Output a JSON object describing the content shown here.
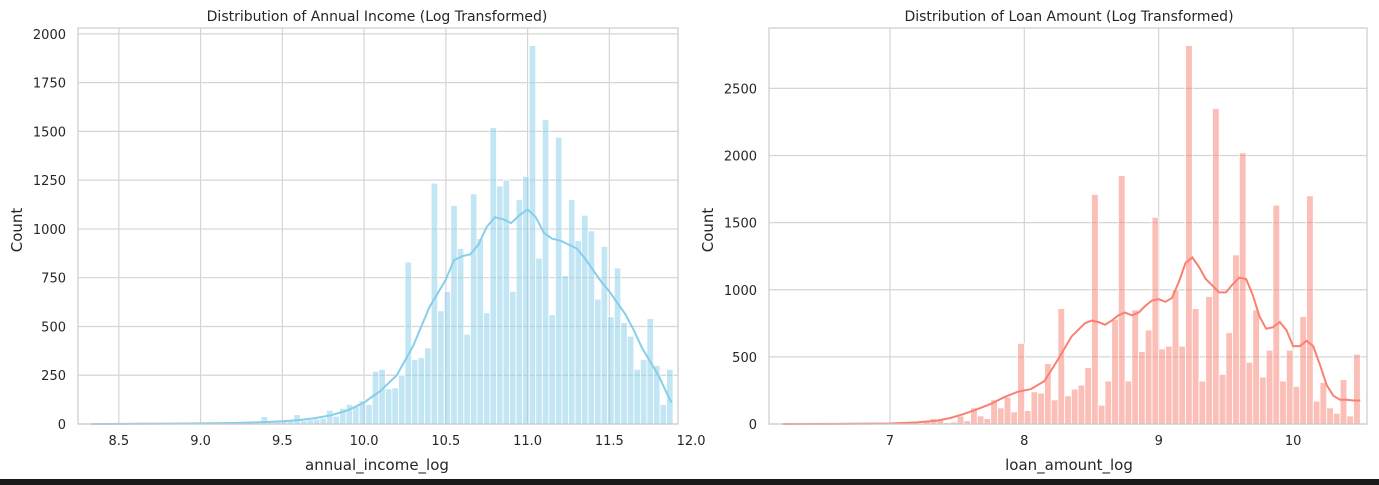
{
  "chart_data": [
    {
      "type": "histogram",
      "title": "Distribution of Annual Income (Log Transformed)",
      "xlabel": "annual_income_log",
      "ylabel": "Count",
      "xlim": [
        8.25,
        11.92
      ],
      "ylim": [
        0,
        2030
      ],
      "xticks": [
        8.5,
        9.0,
        9.5,
        10.0,
        10.5,
        11.0,
        11.5,
        12.0
      ],
      "xtick_labels": [
        "8.5",
        "9.0",
        "9.5",
        "10.0",
        "10.5",
        "11.0",
        "11.5",
        "12.0"
      ],
      "yticks": [
        0,
        250,
        500,
        750,
        1000,
        1250,
        1500,
        1750,
        2000
      ],
      "ytick_labels": [
        "0",
        "250",
        "500",
        "750",
        "1000",
        "1250",
        "1500",
        "1750",
        "2000"
      ],
      "grid": true,
      "bar_color": "#87ceeb",
      "kde_color": "#87ceeb",
      "bins": [
        [
          8.33,
          8.37,
          1
        ],
        [
          8.37,
          8.41,
          0
        ],
        [
          8.41,
          8.45,
          0
        ],
        [
          8.45,
          8.49,
          1
        ],
        [
          8.49,
          8.53,
          0
        ],
        [
          8.53,
          8.57,
          0
        ],
        [
          8.57,
          8.61,
          1
        ],
        [
          8.61,
          8.65,
          0
        ],
        [
          8.65,
          8.69,
          0
        ],
        [
          8.69,
          8.73,
          1
        ],
        [
          8.73,
          8.77,
          0
        ],
        [
          8.77,
          8.81,
          0
        ],
        [
          8.81,
          8.85,
          2
        ],
        [
          8.85,
          8.89,
          0
        ],
        [
          8.89,
          8.93,
          0
        ],
        [
          8.93,
          8.97,
          1
        ],
        [
          8.97,
          9.01,
          3
        ],
        [
          9.01,
          9.05,
          2
        ],
        [
          9.05,
          9.09,
          2
        ],
        [
          9.09,
          9.13,
          3
        ],
        [
          9.13,
          9.17,
          4
        ],
        [
          9.17,
          9.21,
          5
        ],
        [
          9.21,
          9.25,
          6
        ],
        [
          9.25,
          9.29,
          8
        ],
        [
          9.29,
          9.33,
          10
        ],
        [
          9.33,
          9.37,
          12
        ],
        [
          9.37,
          9.41,
          38
        ],
        [
          9.41,
          9.45,
          10
        ],
        [
          9.45,
          9.49,
          12
        ],
        [
          9.49,
          9.53,
          14
        ],
        [
          9.53,
          9.57,
          16
        ],
        [
          9.57,
          9.61,
          48
        ],
        [
          9.61,
          9.65,
          18
        ],
        [
          9.65,
          9.69,
          22
        ],
        [
          9.69,
          9.73,
          25
        ],
        [
          9.73,
          9.77,
          30
        ],
        [
          9.77,
          9.81,
          70
        ],
        [
          9.81,
          9.85,
          40
        ],
        [
          9.85,
          9.89,
          80
        ],
        [
          9.89,
          9.93,
          100
        ],
        [
          9.93,
          9.97,
          90
        ],
        [
          9.97,
          10.01,
          120
        ],
        [
          10.01,
          10.05,
          100
        ],
        [
          10.05,
          10.09,
          270
        ],
        [
          10.09,
          10.13,
          280
        ],
        [
          10.13,
          10.17,
          180
        ],
        [
          10.17,
          10.21,
          185
        ],
        [
          10.21,
          10.25,
          250
        ],
        [
          10.25,
          10.29,
          830
        ],
        [
          10.29,
          10.33,
          330
        ],
        [
          10.33,
          10.37,
          340
        ],
        [
          10.37,
          10.41,
          390
        ],
        [
          10.41,
          10.45,
          1235
        ],
        [
          10.45,
          10.49,
          580
        ],
        [
          10.49,
          10.53,
          680
        ],
        [
          10.53,
          10.57,
          1120
        ],
        [
          10.57,
          10.61,
          900
        ],
        [
          10.61,
          10.65,
          460
        ],
        [
          10.65,
          10.69,
          1180
        ],
        [
          10.69,
          10.73,
          950
        ],
        [
          10.73,
          10.77,
          570
        ],
        [
          10.77,
          10.81,
          1520
        ],
        [
          10.81,
          10.85,
          1220
        ],
        [
          10.85,
          10.89,
          1250
        ],
        [
          10.89,
          10.93,
          680
        ],
        [
          10.93,
          10.97,
          1150
        ],
        [
          10.97,
          11.01,
          1270
        ],
        [
          11.01,
          11.05,
          1940
        ],
        [
          11.05,
          11.09,
          850
        ],
        [
          11.09,
          11.13,
          1560
        ],
        [
          11.13,
          11.17,
          560
        ],
        [
          11.17,
          11.21,
          1470
        ],
        [
          11.21,
          11.25,
          760
        ],
        [
          11.25,
          11.29,
          1150
        ],
        [
          11.29,
          11.33,
          940
        ],
        [
          11.33,
          11.37,
          1070
        ],
        [
          11.37,
          11.41,
          990
        ],
        [
          11.41,
          11.45,
          640
        ],
        [
          11.45,
          11.49,
          910
        ],
        [
          11.49,
          11.53,
          550
        ],
        [
          11.53,
          11.57,
          800
        ],
        [
          11.57,
          11.61,
          520
        ],
        [
          11.61,
          11.65,
          450
        ],
        [
          11.65,
          11.69,
          280
        ],
        [
          11.69,
          11.73,
          330
        ],
        [
          11.73,
          11.77,
          540
        ],
        [
          11.77,
          11.81,
          300
        ],
        [
          11.81,
          11.85,
          100
        ],
        [
          11.85,
          11.89,
          280
        ]
      ],
      "kde": [
        [
          8.33,
          0
        ],
        [
          8.6,
          1
        ],
        [
          8.8,
          2
        ],
        [
          9.0,
          3
        ],
        [
          9.2,
          5
        ],
        [
          9.4,
          10
        ],
        [
          9.5,
          14
        ],
        [
          9.6,
          20
        ],
        [
          9.7,
          30
        ],
        [
          9.8,
          45
        ],
        [
          9.9,
          70
        ],
        [
          10.0,
          110
        ],
        [
          10.1,
          170
        ],
        [
          10.2,
          250
        ],
        [
          10.3,
          400
        ],
        [
          10.35,
          500
        ],
        [
          10.4,
          600
        ],
        [
          10.45,
          670
        ],
        [
          10.5,
          740
        ],
        [
          10.55,
          840
        ],
        [
          10.6,
          860
        ],
        [
          10.65,
          870
        ],
        [
          10.7,
          920
        ],
        [
          10.75,
          1010
        ],
        [
          10.8,
          1060
        ],
        [
          10.85,
          1050
        ],
        [
          10.9,
          1030
        ],
        [
          10.95,
          1070
        ],
        [
          11.0,
          1100
        ],
        [
          11.05,
          1060
        ],
        [
          11.1,
          980
        ],
        [
          11.15,
          950
        ],
        [
          11.2,
          940
        ],
        [
          11.25,
          920
        ],
        [
          11.3,
          900
        ],
        [
          11.35,
          850
        ],
        [
          11.4,
          790
        ],
        [
          11.45,
          730
        ],
        [
          11.5,
          680
        ],
        [
          11.55,
          620
        ],
        [
          11.6,
          560
        ],
        [
          11.65,
          480
        ],
        [
          11.7,
          390
        ],
        [
          11.75,
          320
        ],
        [
          11.8,
          250
        ],
        [
          11.85,
          160
        ],
        [
          11.88,
          110
        ]
      ]
    },
    {
      "type": "histogram",
      "title": "Distribution of Loan Amount (Log Transformed)",
      "xlabel": "loan_amount_log",
      "ylabel": "Count",
      "xlim": [
        6.1,
        10.55
      ],
      "ylim": [
        0,
        2950
      ],
      "xticks": [
        7,
        8,
        9,
        10
      ],
      "xtick_labels": [
        "7",
        "8",
        "9",
        "10"
      ],
      "yticks": [
        0,
        500,
        1000,
        1500,
        2000,
        2500
      ],
      "ytick_labels": [
        "0",
        "500",
        "1000",
        "1500",
        "2000",
        "2500"
      ],
      "grid": true,
      "bar_color": "#fa8072",
      "kde_color": "#fa8072",
      "bins": [
        [
          6.25,
          6.3,
          2
        ],
        [
          6.3,
          6.35,
          0
        ],
        [
          6.35,
          6.4,
          0
        ],
        [
          6.4,
          6.45,
          0
        ],
        [
          6.45,
          6.5,
          0
        ],
        [
          6.5,
          6.55,
          1
        ],
        [
          6.55,
          6.6,
          0
        ],
        [
          6.6,
          6.65,
          0
        ],
        [
          6.65,
          6.7,
          0
        ],
        [
          6.7,
          6.75,
          1
        ],
        [
          6.75,
          6.8,
          0
        ],
        [
          6.8,
          6.85,
          0
        ],
        [
          6.85,
          6.9,
          2
        ],
        [
          6.9,
          6.95,
          0
        ],
        [
          6.95,
          7.0,
          1
        ],
        [
          7.0,
          7.05,
          3
        ],
        [
          7.05,
          7.1,
          1
        ],
        [
          7.1,
          7.15,
          2
        ],
        [
          7.15,
          7.2,
          6
        ],
        [
          7.2,
          7.25,
          4
        ],
        [
          7.25,
          7.3,
          20
        ],
        [
          7.3,
          7.35,
          40
        ],
        [
          7.35,
          7.4,
          30
        ],
        [
          7.4,
          7.45,
          10
        ],
        [
          7.45,
          7.5,
          15
        ],
        [
          7.5,
          7.55,
          60
        ],
        [
          7.55,
          7.6,
          25
        ],
        [
          7.6,
          7.65,
          120
        ],
        [
          7.65,
          7.7,
          60
        ],
        [
          7.7,
          7.75,
          40
        ],
        [
          7.75,
          7.8,
          180
        ],
        [
          7.8,
          7.85,
          120
        ],
        [
          7.85,
          7.9,
          200
        ],
        [
          7.9,
          7.95,
          90
        ],
        [
          7.95,
          8.0,
          600
        ],
        [
          8.0,
          8.05,
          100
        ],
        [
          8.05,
          8.1,
          240
        ],
        [
          8.1,
          8.15,
          230
        ],
        [
          8.15,
          8.2,
          450
        ],
        [
          8.2,
          8.25,
          180
        ],
        [
          8.25,
          8.3,
          860
        ],
        [
          8.3,
          8.35,
          210
        ],
        [
          8.35,
          8.4,
          260
        ],
        [
          8.4,
          8.45,
          290
        ],
        [
          8.45,
          8.5,
          420
        ],
        [
          8.5,
          8.55,
          1710
        ],
        [
          8.55,
          8.6,
          140
        ],
        [
          8.6,
          8.65,
          320
        ],
        [
          8.65,
          8.7,
          780
        ],
        [
          8.7,
          8.75,
          1850
        ],
        [
          8.75,
          8.8,
          320
        ],
        [
          8.8,
          8.85,
          850
        ],
        [
          8.85,
          8.9,
          540
        ],
        [
          8.9,
          8.95,
          700
        ],
        [
          8.95,
          9.0,
          1540
        ],
        [
          9.0,
          9.05,
          560
        ],
        [
          9.05,
          9.1,
          580
        ],
        [
          9.1,
          9.15,
          1000
        ],
        [
          9.15,
          9.2,
          580
        ],
        [
          9.2,
          9.25,
          2820
        ],
        [
          9.25,
          9.3,
          860
        ],
        [
          9.3,
          9.35,
          320
        ],
        [
          9.35,
          9.4,
          950
        ],
        [
          9.4,
          9.45,
          2350
        ],
        [
          9.45,
          9.5,
          370
        ],
        [
          9.5,
          9.55,
          680
        ],
        [
          9.55,
          9.6,
          1260
        ],
        [
          9.6,
          9.65,
          2020
        ],
        [
          9.65,
          9.7,
          460
        ],
        [
          9.7,
          9.75,
          850
        ],
        [
          9.75,
          9.8,
          350
        ],
        [
          9.8,
          9.85,
          550
        ],
        [
          9.85,
          9.9,
          1630
        ],
        [
          9.9,
          9.95,
          320
        ],
        [
          9.95,
          10.0,
          550
        ],
        [
          10.0,
          10.05,
          280
        ],
        [
          10.05,
          10.1,
          800
        ],
        [
          10.1,
          10.15,
          1700
        ],
        [
          10.15,
          10.2,
          170
        ],
        [
          10.2,
          10.25,
          310
        ],
        [
          10.25,
          10.3,
          120
        ],
        [
          10.3,
          10.35,
          80
        ],
        [
          10.35,
          10.4,
          330
        ],
        [
          10.4,
          10.45,
          60
        ],
        [
          10.45,
          10.5,
          520
        ]
      ],
      "kde": [
        [
          6.2,
          0
        ],
        [
          6.6,
          1
        ],
        [
          7.0,
          4
        ],
        [
          7.2,
          12
        ],
        [
          7.35,
          25
        ],
        [
          7.45,
          45
        ],
        [
          7.55,
          75
        ],
        [
          7.65,
          110
        ],
        [
          7.75,
          150
        ],
        [
          7.85,
          200
        ],
        [
          7.95,
          240
        ],
        [
          8.05,
          260
        ],
        [
          8.15,
          320
        ],
        [
          8.25,
          480
        ],
        [
          8.35,
          650
        ],
        [
          8.45,
          750
        ],
        [
          8.5,
          770
        ],
        [
          8.55,
          760
        ],
        [
          8.6,
          740
        ],
        [
          8.65,
          770
        ],
        [
          8.7,
          810
        ],
        [
          8.75,
          830
        ],
        [
          8.8,
          810
        ],
        [
          8.85,
          830
        ],
        [
          8.9,
          880
        ],
        [
          8.95,
          920
        ],
        [
          9.0,
          930
        ],
        [
          9.05,
          910
        ],
        [
          9.1,
          940
        ],
        [
          9.15,
          1060
        ],
        [
          9.2,
          1200
        ],
        [
          9.25,
          1240
        ],
        [
          9.3,
          1170
        ],
        [
          9.35,
          1080
        ],
        [
          9.4,
          1030
        ],
        [
          9.45,
          980
        ],
        [
          9.5,
          980
        ],
        [
          9.55,
          1040
        ],
        [
          9.6,
          1090
        ],
        [
          9.65,
          1080
        ],
        [
          9.7,
          960
        ],
        [
          9.75,
          800
        ],
        [
          9.8,
          710
        ],
        [
          9.85,
          720
        ],
        [
          9.9,
          760
        ],
        [
          9.95,
          700
        ],
        [
          10.0,
          580
        ],
        [
          10.05,
          580
        ],
        [
          10.1,
          620
        ],
        [
          10.15,
          580
        ],
        [
          10.2,
          440
        ],
        [
          10.25,
          290
        ],
        [
          10.3,
          210
        ],
        [
          10.35,
          180
        ],
        [
          10.4,
          180
        ],
        [
          10.45,
          175
        ],
        [
          10.5,
          175
        ]
      ]
    }
  ]
}
